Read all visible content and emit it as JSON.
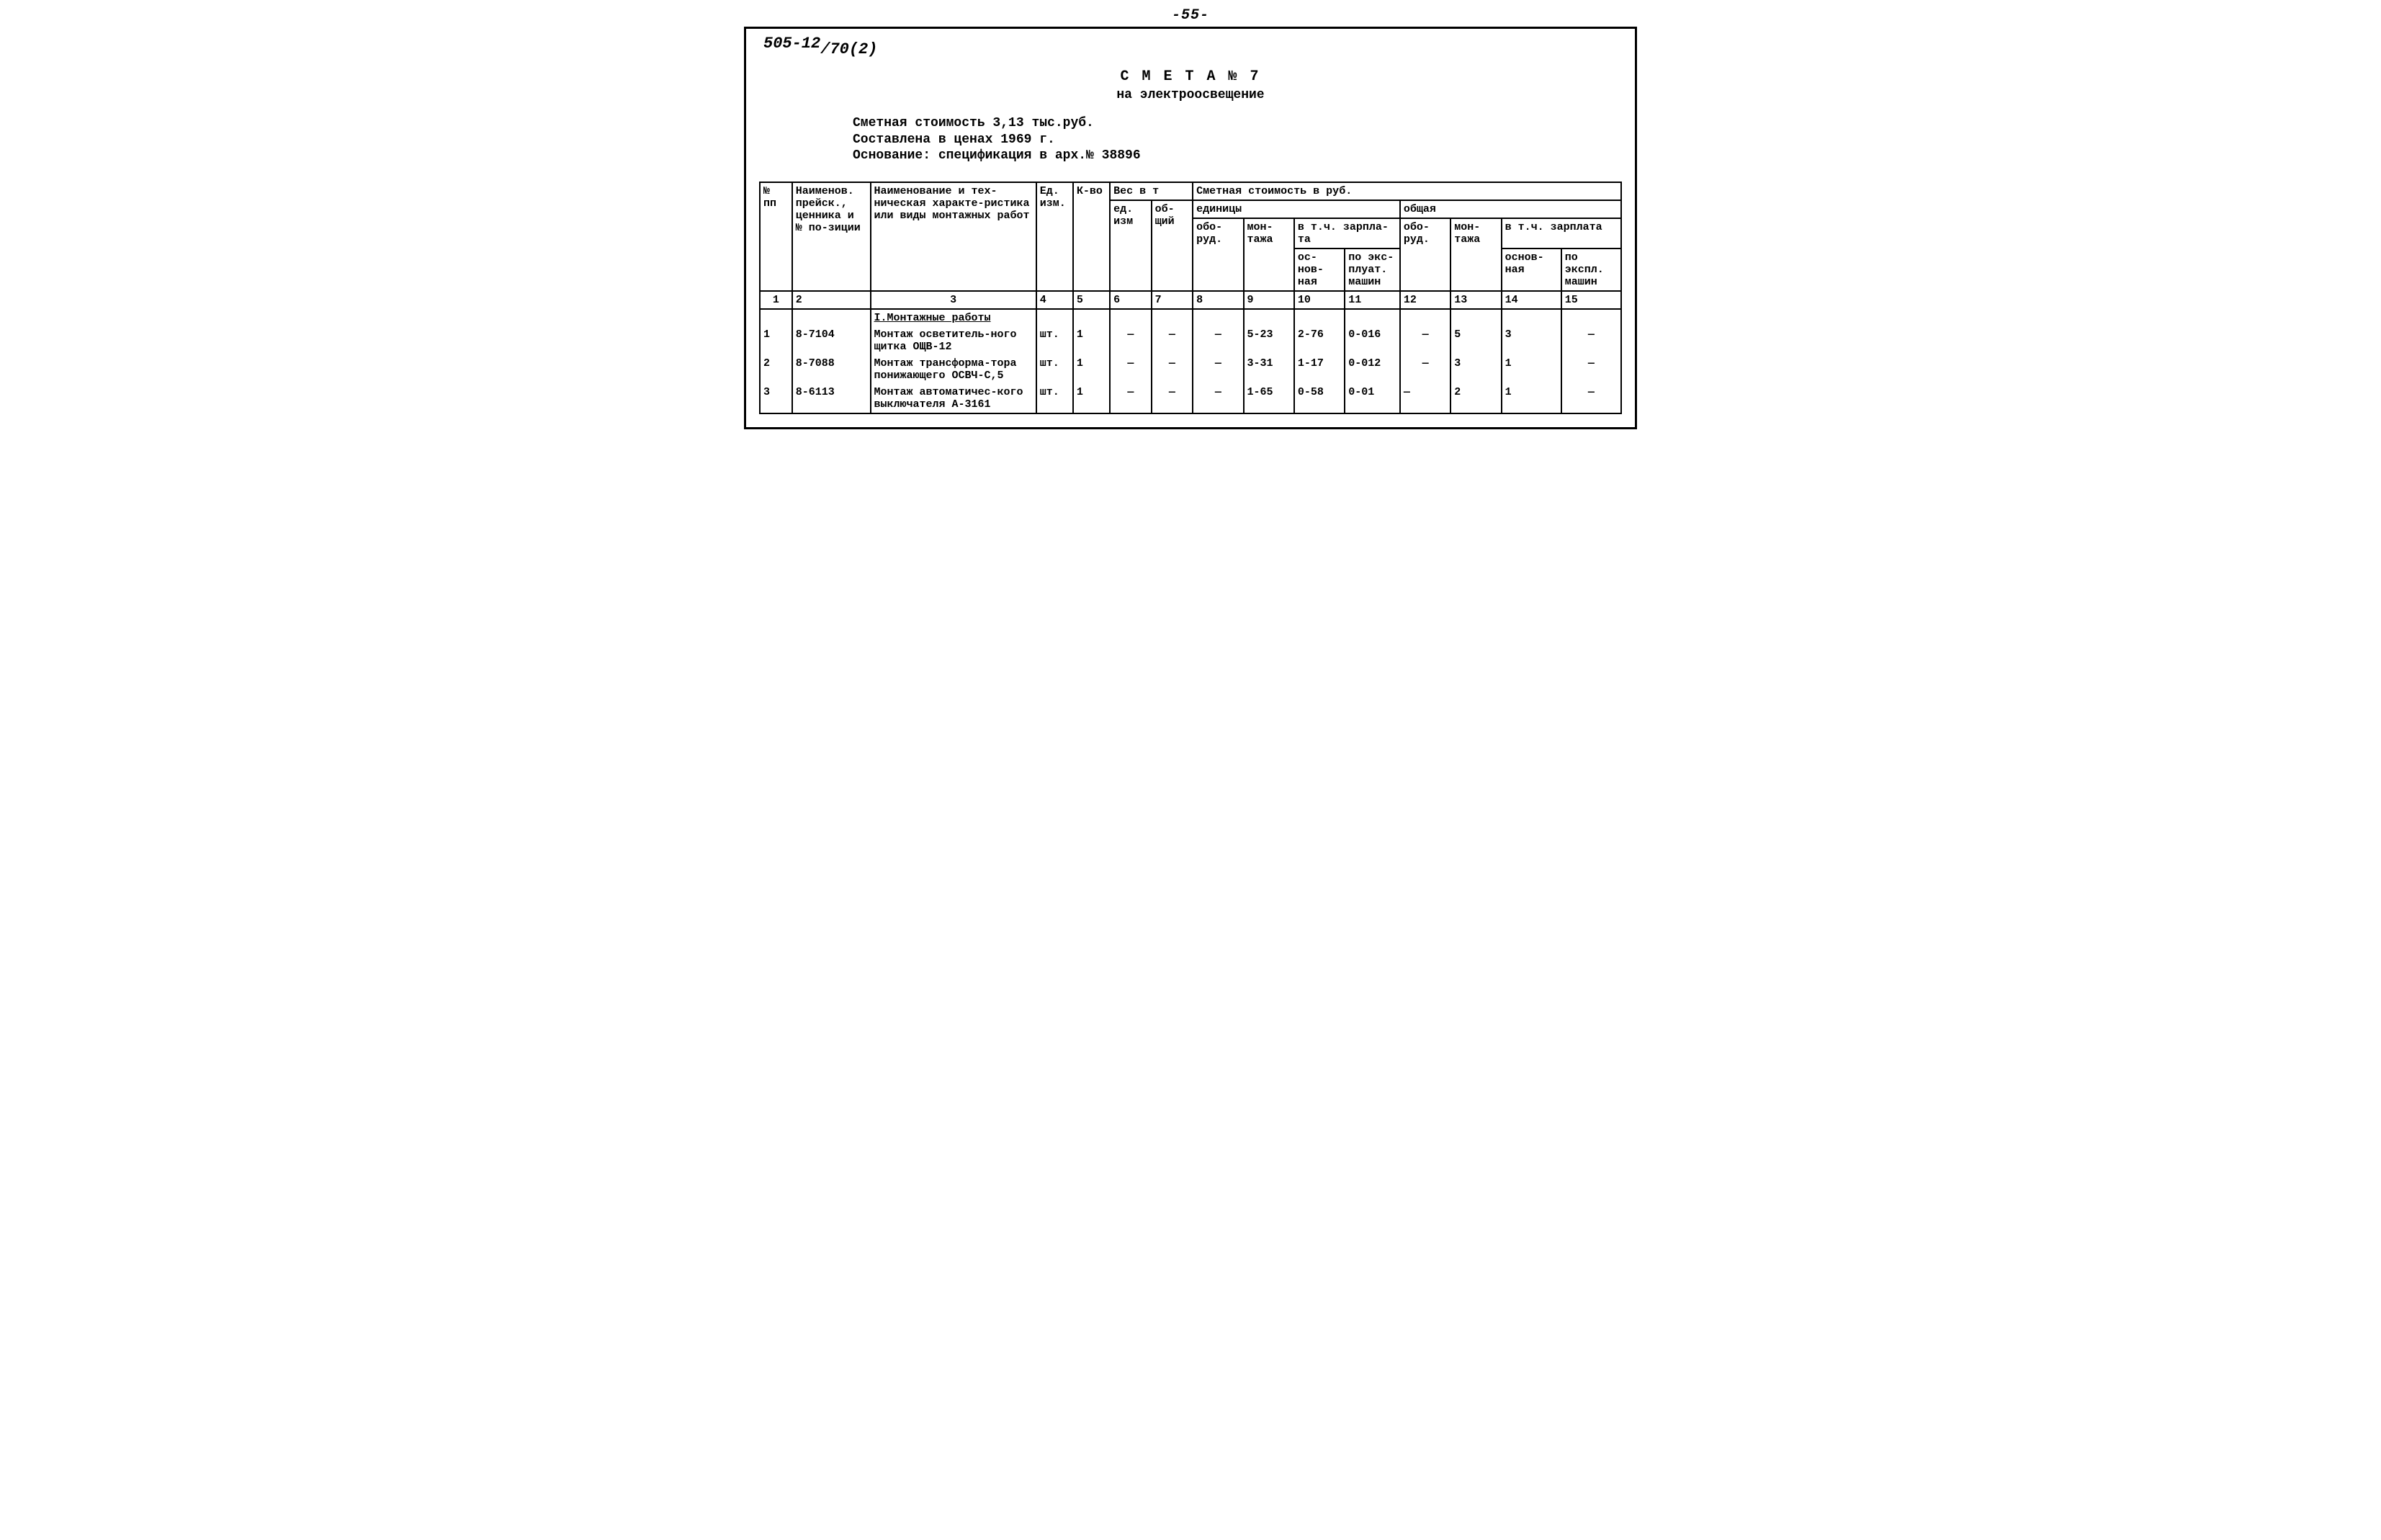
{
  "page_number": "-55-",
  "doc_code_left": "505-12",
  "doc_code_right": "/70(2)",
  "title": "С М Е Т А  № 7",
  "subtitle": "на электроосвещение",
  "meta": {
    "line1": "Сметная стоимость 3,13 тыс.руб.",
    "line2": "Составлена в ценах 1969 г.",
    "line3": "Основание: спецификация в арх.№ 38896"
  },
  "header": {
    "c1": "№ пп",
    "c2": "Наименов. прейск., ценника и № по-зиции",
    "c3": "Наименование и тех-ническая характе-ристика или виды монтажных работ",
    "c4": "Ед. изм.",
    "c5": "К-во",
    "weight_group": "Вес в т",
    "c6": "ед. изм",
    "c7": "об-щий",
    "cost_group": "Сметная стоимость в руб.",
    "unit_group": "единицы",
    "total_group": "общая",
    "c8": "обо-руд.",
    "c9": "мон-тажа",
    "salary_group_u": "в т.ч. зарпла-та",
    "c10": "ос-нов-ная",
    "c11": "по экс-плуат. машин",
    "c12": "обо-руд.",
    "c13": "мон-тажа",
    "salary_group_t": "в т.ч. зарплата",
    "c14": "основ-ная",
    "c15": "по экспл. машин"
  },
  "colnums": [
    "1",
    "2",
    "3",
    "4",
    "5",
    "6",
    "7",
    "8",
    "9",
    "10",
    "11",
    "12",
    "13",
    "14",
    "15"
  ],
  "section1": "I.Монтажные работы",
  "rows": [
    {
      "n": "1",
      "code": "8-7104",
      "desc": "Монтаж осветитель-ного щитка ОЩВ-12",
      "unit": "шт.",
      "qty": "1",
      "w_unit": "—",
      "w_tot": "—",
      "u_equip": "—",
      "u_mont": "5-23",
      "u_sal_main": "2-76",
      "u_sal_mach": "0-016",
      "t_equip": "—",
      "t_mont": "5",
      "t_sal_main": "3",
      "t_sal_mach": "—"
    },
    {
      "n": "2",
      "code": "8-7088",
      "desc": "Монтаж трансформа-тора понижающего ОСВЧ-С,5",
      "unit": "шт.",
      "qty": "1",
      "w_unit": "—",
      "w_tot": "—",
      "u_equip": "—",
      "u_mont": "3-31",
      "u_sal_main": "1-17",
      "u_sal_mach": "0-012",
      "t_equip": "—",
      "t_mont": "3",
      "t_sal_main": "1",
      "t_sal_mach": "—"
    },
    {
      "n": "3",
      "code": "8-6113",
      "desc": "Монтаж автоматичес-кого выключателя А-3161",
      "unit": "шт.",
      "qty": "1",
      "w_unit": "—",
      "w_tot": "—",
      "u_equip": "—",
      "u_mont": "1-65",
      "u_sal_main": "0-58",
      "u_sal_mach": "0-01",
      "t_equip": "—",
      "t_mont": "2",
      "t_sal_main": "1",
      "t_sal_mach": "—"
    }
  ]
}
